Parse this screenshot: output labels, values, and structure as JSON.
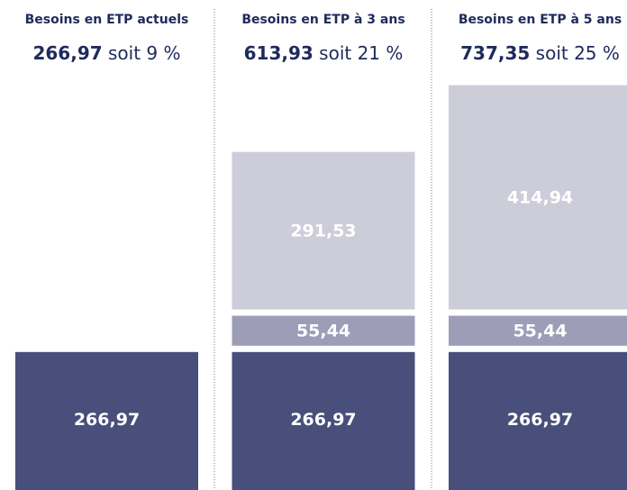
{
  "chart_data": {
    "type": "bar",
    "stacked": true,
    "categories": [
      "Besoins en ETP actuels",
      "Besoins en ETP à 3 ans",
      "Besoins en ETP à 5 ans"
    ],
    "totals": {
      "values": [
        266.97,
        613.93,
        737.35
      ],
      "value_labels": [
        "266,97",
        "613,93",
        "737,35"
      ]
    },
    "shares": {
      "values": [
        9,
        21,
        25
      ],
      "value_labels": [
        "soit 9 %",
        "soit 21 %",
        "soit 25 %"
      ]
    },
    "series": [
      {
        "color": "#474f7a",
        "values": [
          266.97,
          266.97,
          266.97
        ],
        "value_labels": [
          "266,97",
          "266,97",
          "266,97"
        ]
      },
      {
        "color": "#9e9db8",
        "values": [
          null,
          55.44,
          55.44
        ],
        "value_labels": [
          null,
          "55,44",
          "55,44"
        ]
      },
      {
        "color": "#cdcdda",
        "values": [
          null,
          291.53,
          414.94
        ],
        "value_labels": [
          null,
          "291,53",
          "414,94"
        ]
      }
    ]
  }
}
